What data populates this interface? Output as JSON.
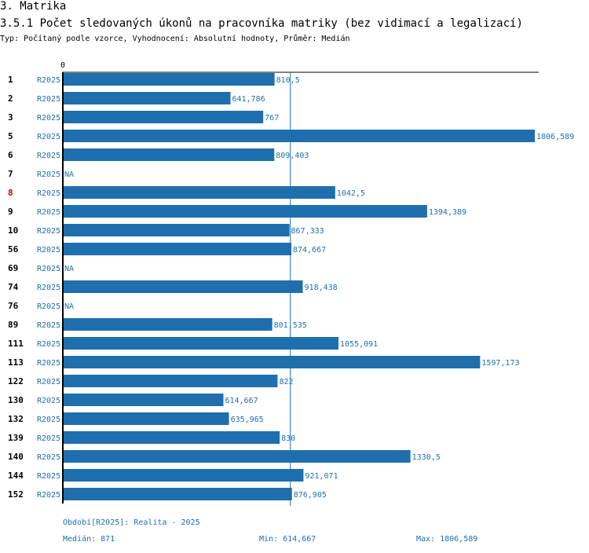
{
  "header": {
    "section": "3. Matrika",
    "title": "3.5.1 Počet sledovaných úkonů na pracovníka matriky (bez vidimací a legalizací)",
    "subtitle": "Typ: Počítaný podle vzorce, Vyhodnocení: Absolutní hodnoty, Průměr: Medián"
  },
  "colors": {
    "bar": "#1f6fae",
    "label": "#1f6fae",
    "highlight": "#cc0000",
    "axis": "#000000",
    "median_line": "#1f6fae"
  },
  "chart_data": {
    "type": "bar",
    "orientation": "horizontal",
    "title": "3.5.1 Počet sledovaných úkonů na pracovníka matriky (bez vidimací a legalizací)",
    "x_tick_labels": [
      "0"
    ],
    "xlim": [
      0,
      1806.589
    ],
    "median": 871,
    "highlight_id": "8",
    "rows": [
      {
        "id": "1",
        "series": "R2025",
        "value": 810.5,
        "label": "810,5"
      },
      {
        "id": "2",
        "series": "R2025",
        "value": 641.786,
        "label": "641,786"
      },
      {
        "id": "3",
        "series": "R2025",
        "value": 767,
        "label": "767"
      },
      {
        "id": "5",
        "series": "R2025",
        "value": 1806.589,
        "label": "1806,589"
      },
      {
        "id": "6",
        "series": "R2025",
        "value": 809.403,
        "label": "809,403"
      },
      {
        "id": "7",
        "series": "R2025",
        "value": null,
        "label": "NA"
      },
      {
        "id": "8",
        "series": "R2025",
        "value": 1042.5,
        "label": "1042,5"
      },
      {
        "id": "9",
        "series": "R2025",
        "value": 1394.389,
        "label": "1394,389"
      },
      {
        "id": "10",
        "series": "R2025",
        "value": 867.333,
        "label": "867,333"
      },
      {
        "id": "56",
        "series": "R2025",
        "value": 874.667,
        "label": "874,667"
      },
      {
        "id": "69",
        "series": "R2025",
        "value": null,
        "label": "NA"
      },
      {
        "id": "74",
        "series": "R2025",
        "value": 918.438,
        "label": "918,438"
      },
      {
        "id": "76",
        "series": "R2025",
        "value": null,
        "label": "NA"
      },
      {
        "id": "89",
        "series": "R2025",
        "value": 801.535,
        "label": "801,535"
      },
      {
        "id": "111",
        "series": "R2025",
        "value": 1055.091,
        "label": "1055,091"
      },
      {
        "id": "113",
        "series": "R2025",
        "value": 1597.173,
        "label": "1597,173"
      },
      {
        "id": "122",
        "series": "R2025",
        "value": 822,
        "label": "822"
      },
      {
        "id": "130",
        "series": "R2025",
        "value": 614.667,
        "label": "614,667"
      },
      {
        "id": "132",
        "series": "R2025",
        "value": 635.965,
        "label": "635,965"
      },
      {
        "id": "139",
        "series": "R2025",
        "value": 830,
        "label": "830"
      },
      {
        "id": "140",
        "series": "R2025",
        "value": 1330.5,
        "label": "1330,5"
      },
      {
        "id": "144",
        "series": "R2025",
        "value": 921.071,
        "label": "921,071"
      },
      {
        "id": "152",
        "series": "R2025",
        "value": 876.905,
        "label": "876,905"
      }
    ]
  },
  "footer": {
    "period": "Období[R2025]: Realita - 2025",
    "median": "Medián: 871",
    "min": "Min: 614,667",
    "max": "Max: 1806,589"
  }
}
